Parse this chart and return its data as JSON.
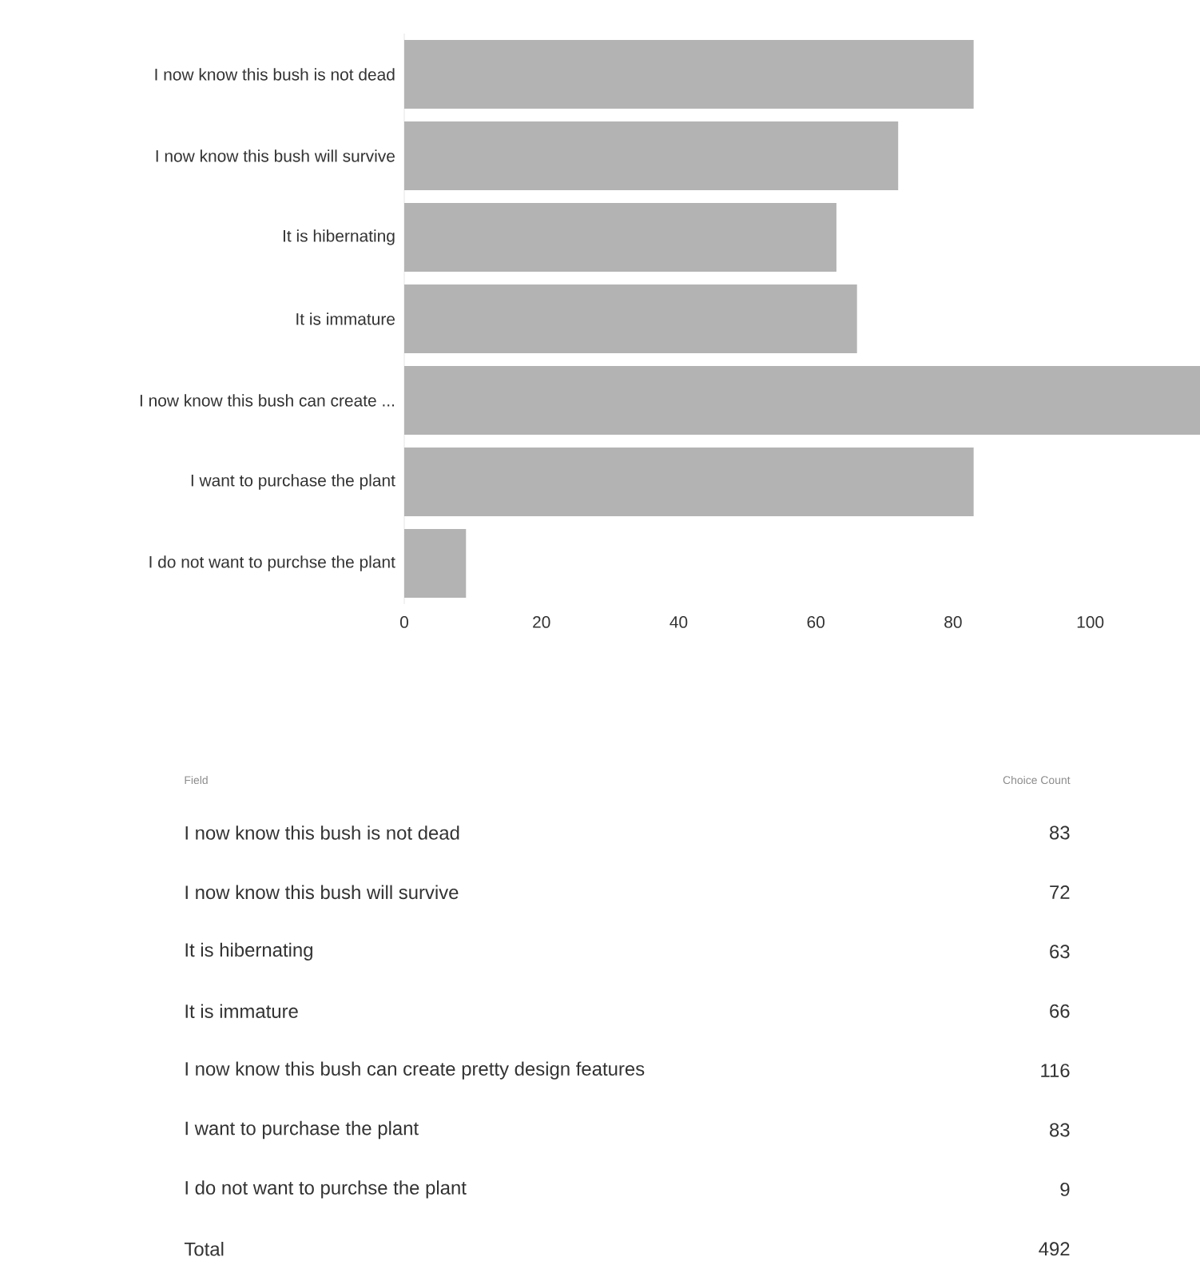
{
  "chart_data": {
    "type": "bar",
    "orientation": "horizontal",
    "categories": [
      "I now know this bush is not dead",
      "I now know this bush will survive",
      "It is hibernating",
      "It is immature",
      "I now know this bush can create ...",
      "I want to purchase the plant",
      "I do not want to purchse the plant"
    ],
    "values": [
      83,
      72,
      63,
      66,
      116,
      83,
      9
    ],
    "color": "#b3b3b3",
    "xlim": [
      0,
      116
    ],
    "xticks": [
      0,
      20,
      40,
      60,
      80,
      100
    ],
    "annotations": [
      "Field",
      "Choice Count",
      "I now know this bush is not dead",
      "83",
      "I now know this bush will survive",
      "72",
      "It is hibernating",
      "63",
      "It is immature",
      "66",
      "I now know this bush can create pretty design features",
      "116",
      "I want to purchase the plant",
      "83",
      "I do not want to purchse the plant",
      "9",
      "Total",
      "492"
    ]
  }
}
